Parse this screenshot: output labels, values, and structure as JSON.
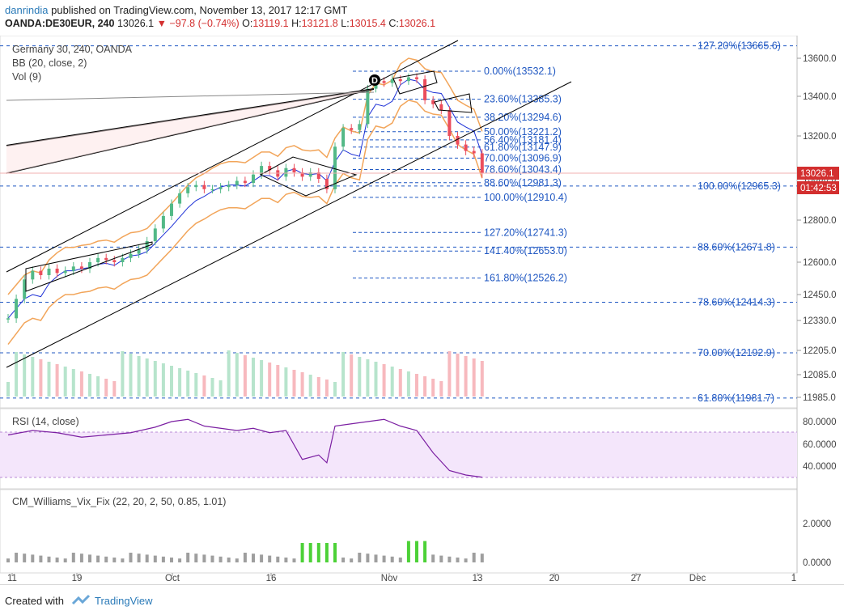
{
  "header": {
    "author": "danrindia",
    "published_text": "published on TradingView.com, November 13, 2017 12:17 GMT",
    "symbol": "OANDA:DE30EUR, 240",
    "last": "13026.1",
    "change": "▼ −97.8 (−0.74%)",
    "o_label": "O:",
    "o": "13119.1",
    "h_label": "H:",
    "h": "13121.8",
    "l_label": "L:",
    "l": "13015.4",
    "c_label": "C:",
    "c": "13026.1"
  },
  "legend": {
    "title": "Germany 30, 240, OANDA",
    "bb": "BB (20, close, 2)",
    "vol": "Vol (9)",
    "rsi": "RSI (14, close)",
    "vix": "CM_Williams_Vix_Fix (22, 20, 2, 50, 0.85, 1.01)"
  },
  "colors": {
    "bull": "#53b987",
    "bear": "#eb4d5c",
    "bb_band": "#f2a55a",
    "bb_basis": "#1c2fd6",
    "fib": "#1f57c2",
    "rsi": "#7b1fa2",
    "rsi_fill": "#f3e5fb",
    "vix_green": "#4cd137",
    "vix_gray": "#9e9e9e",
    "price_tag": "#d32f2f"
  },
  "price_axis": [
    "13600.0",
    "13400.0",
    "13200.0",
    "13000.0",
    "12800.0",
    "12600.0",
    "12450.0",
    "12330.0",
    "12205.0",
    "12085.0",
    "11985.0"
  ],
  "rsi_axis": [
    "80.0000",
    "60.0000",
    "40.0000"
  ],
  "vix_axis": [
    "2.0000",
    "0.0000"
  ],
  "time_axis": [
    "11",
    "19",
    "Oct",
    "16",
    "Nov",
    "13",
    "20",
    "27",
    "Dec",
    "1"
  ],
  "price_tag": {
    "value": "13026.1",
    "countdown": "01:42:53"
  },
  "pattern_label": "D",
  "fib_left": [
    "0.00%(13532.1)",
    "23.60%(13385.3)",
    "38.20%(13294.6)",
    "50.00%(13221.2)",
    "56.40%(13181.4)",
    "61.80%(13147.9)",
    "70.00%(13096.9)",
    "78.60%(13043.4)",
    "88.60%(12981.3)",
    "100.00%(12910.4)",
    "127.20%(12741.3)",
    "141.40%(12653.0)",
    "161.80%(12526.2)"
  ],
  "fib_right": [
    "127.20%(13665.6)",
    "100.00%(12965.3)",
    "88.60%(12671.8)",
    "78.60%(12414.3)",
    "70.00%(12192.9)",
    "61.80%(11981.7)"
  ],
  "chart_data": {
    "type": "candlestick",
    "symbol": "OANDA:DE30EUR",
    "timeframe": "240",
    "x_ticks": [
      "11",
      "19",
      "Oct",
      "16",
      "Nov",
      "13",
      "20",
      "27",
      "Dec",
      "1"
    ],
    "ohlc_last": {
      "open": 13119.1,
      "high": 13121.8,
      "low": 13015.4,
      "close": 13026.1
    },
    "close_path": [
      [
        0,
        12340
      ],
      [
        2,
        12430
      ],
      [
        4,
        12520
      ],
      [
        6,
        12560
      ],
      [
        8,
        12540
      ],
      [
        10,
        12570
      ],
      [
        12,
        12550
      ],
      [
        14,
        12560
      ],
      [
        16,
        12580
      ],
      [
        18,
        12570
      ],
      [
        20,
        12600
      ],
      [
        22,
        12620
      ],
      [
        24,
        12610
      ],
      [
        26,
        12600
      ],
      [
        28,
        12620
      ],
      [
        30,
        12640
      ],
      [
        32,
        12660
      ],
      [
        34,
        12700
      ],
      [
        36,
        12760
      ],
      [
        38,
        12820
      ],
      [
        40,
        12880
      ],
      [
        42,
        12930
      ],
      [
        44,
        12960
      ],
      [
        46,
        12970
      ],
      [
        48,
        12950
      ],
      [
        50,
        12950
      ],
      [
        52,
        12960
      ],
      [
        54,
        12970
      ],
      [
        56,
        12990
      ],
      [
        58,
        12980
      ],
      [
        60,
        13020
      ],
      [
        62,
        13060
      ],
      [
        64,
        13040
      ],
      [
        66,
        13010
      ],
      [
        68,
        13050
      ],
      [
        70,
        13030
      ],
      [
        72,
        13010
      ],
      [
        74,
        13030
      ],
      [
        76,
        13000
      ],
      [
        78,
        12950
      ],
      [
        80,
        13150
      ],
      [
        82,
        13240
      ],
      [
        84,
        13230
      ],
      [
        86,
        13260
      ],
      [
        88,
        13440
      ],
      [
        90,
        13480
      ],
      [
        92,
        13470
      ],
      [
        94,
        13490
      ],
      [
        96,
        13480
      ],
      [
        98,
        13500
      ],
      [
        100,
        13490
      ],
      [
        102,
        13380
      ],
      [
        104,
        13360
      ],
      [
        106,
        13330
      ],
      [
        108,
        13200
      ],
      [
        110,
        13160
      ],
      [
        112,
        13130
      ],
      [
        114,
        13119
      ],
      [
        116,
        13026
      ]
    ],
    "rsi_path": [
      [
        0,
        68
      ],
      [
        6,
        72
      ],
      [
        12,
        70
      ],
      [
        18,
        66
      ],
      [
        24,
        68
      ],
      [
        30,
        70
      ],
      [
        36,
        75
      ],
      [
        40,
        80
      ],
      [
        44,
        82
      ],
      [
        48,
        76
      ],
      [
        52,
        74
      ],
      [
        56,
        72
      ],
      [
        60,
        74
      ],
      [
        64,
        70
      ],
      [
        68,
        72
      ],
      [
        72,
        46
      ],
      [
        76,
        50
      ],
      [
        78,
        43
      ],
      [
        80,
        76
      ],
      [
        84,
        78
      ],
      [
        88,
        80
      ],
      [
        92,
        82
      ],
      [
        96,
        76
      ],
      [
        100,
        72
      ],
      [
        104,
        52
      ],
      [
        108,
        36
      ],
      [
        112,
        32
      ],
      [
        116,
        30
      ]
    ],
    "fib_levels": [
      {
        "label": "0.00%",
        "value": 13532.1
      },
      {
        "label": "23.60%",
        "value": 13385.3
      },
      {
        "label": "38.20%",
        "value": 13294.6
      },
      {
        "label": "50.00%",
        "value": 13221.2
      },
      {
        "label": "56.40%",
        "value": 13181.4
      },
      {
        "label": "61.80%",
        "value": 13147.9
      },
      {
        "label": "70.00%",
        "value": 13096.9
      },
      {
        "label": "78.60%",
        "value": 13043.4
      },
      {
        "label": "88.60%",
        "value": 12981.3
      },
      {
        "label": "100.00%",
        "value": 12910.4
      },
      {
        "label": "127.20%",
        "value": 12741.3
      },
      {
        "label": "141.40%",
        "value": 12653.0
      },
      {
        "label": "161.80%",
        "value": 12526.2
      }
    ],
    "fib_levels_right": [
      {
        "label": "127.20%",
        "value": 13665.6
      },
      {
        "label": "100.00%",
        "value": 12965.3
      },
      {
        "label": "88.60%",
        "value": 12671.8
      },
      {
        "label": "78.60%",
        "value": 12414.3
      },
      {
        "label": "70.00%",
        "value": 12192.9
      },
      {
        "label": "61.80%",
        "value": 11981.7
      }
    ],
    "rsi_ylim": [
      20,
      90
    ],
    "vix_ylim": [
      0,
      3
    ]
  }
}
